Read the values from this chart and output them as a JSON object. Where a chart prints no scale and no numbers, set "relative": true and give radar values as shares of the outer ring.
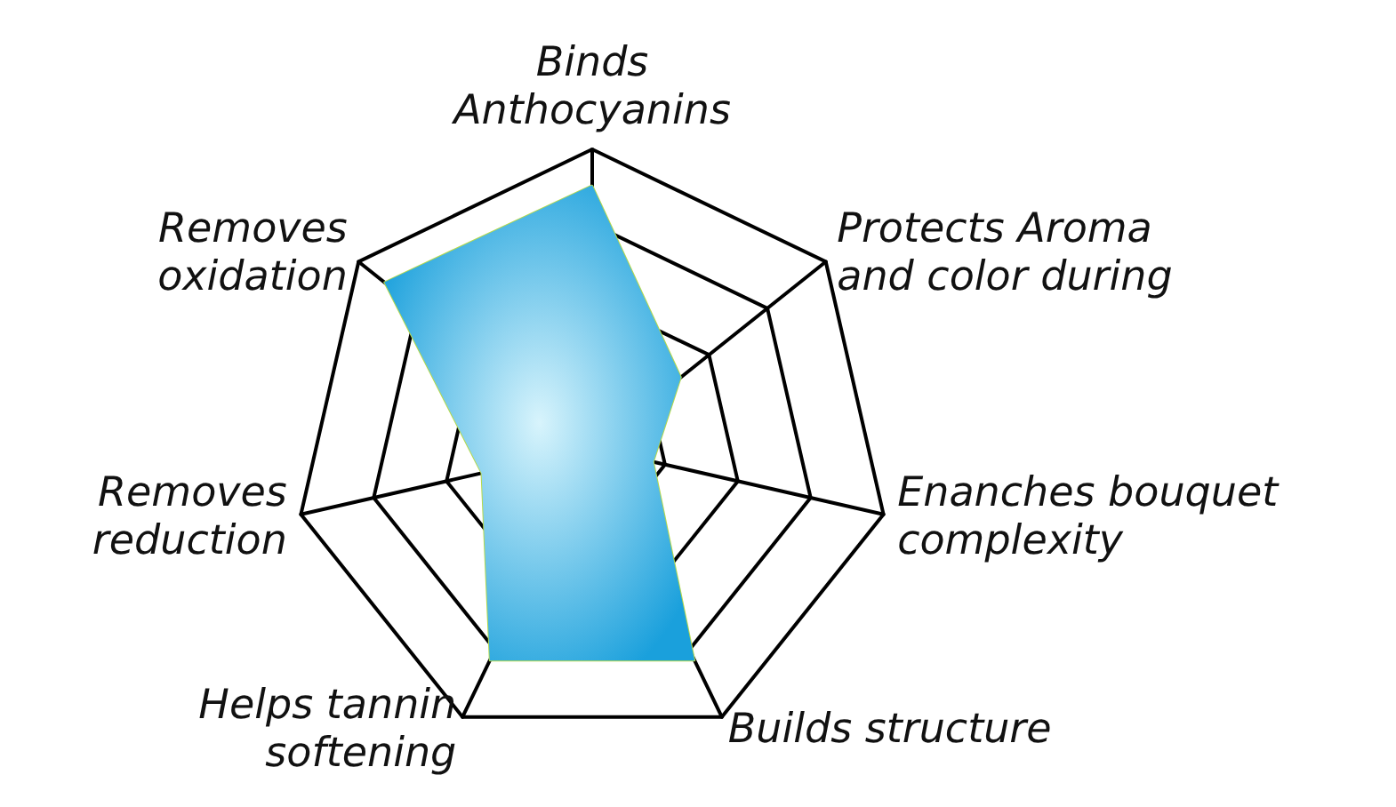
{
  "chart_data": {
    "type": "radar",
    "relative": true,
    "categories": [
      "Binds\nAnthocyanins",
      "Protects Aroma\nand color during",
      "Enanches bouquet\ncomplexity",
      "Builds structure",
      "Helps tannin\nsoftening",
      "Removes\nreduction",
      "Removes\noxidation"
    ],
    "series": [
      {
        "color": "#1aa0dc",
        "values": [
          0.88,
          0.38,
          0.21,
          0.79,
          0.79,
          0.38,
          0.89
        ]
      }
    ]
  }
}
